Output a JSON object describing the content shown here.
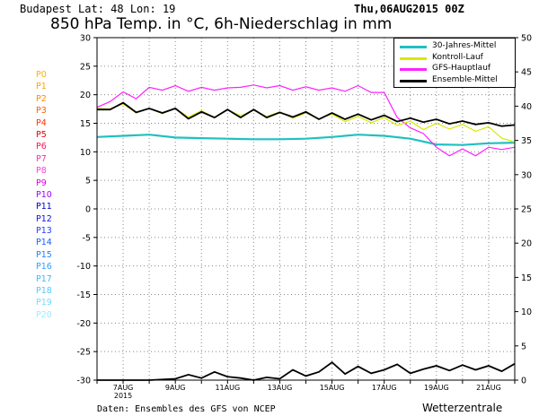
{
  "header": {
    "location": "Budapest   Lat: 48 Lon: 19",
    "run_time": "Thu,06AUG2015 00Z",
    "title": "850 hPa Temp. in °C, 6h-Niederschlag in mm"
  },
  "footer": {
    "source": "Daten: Ensembles des GFS von NCEP",
    "credit": "Wetterzentrale"
  },
  "ensemble_members": [
    {
      "label": "P0",
      "color": "#ffb000"
    },
    {
      "label": "P1",
      "color": "#ffa500"
    },
    {
      "label": "P2",
      "color": "#ff8c00"
    },
    {
      "label": "P3",
      "color": "#ff6000"
    },
    {
      "label": "P4",
      "color": "#ff3000"
    },
    {
      "label": "P5",
      "color": "#e80000"
    },
    {
      "label": "P6",
      "color": "#ff1060"
    },
    {
      "label": "P7",
      "color": "#ff30a0"
    },
    {
      "label": "P8",
      "color": "#ff40e0"
    },
    {
      "label": "P9",
      "color": "#e000e0"
    },
    {
      "label": "P10",
      "color": "#a000ff"
    },
    {
      "label": "P11",
      "color": "#0000c0"
    },
    {
      "label": "P12",
      "color": "#1010e0"
    },
    {
      "label": "P13",
      "color": "#2040ff"
    },
    {
      "label": "P14",
      "color": "#1060ff"
    },
    {
      "label": "P15",
      "color": "#2080ff"
    },
    {
      "label": "P16",
      "color": "#30a0ff"
    },
    {
      "label": "P17",
      "color": "#40b8ff"
    },
    {
      "label": "P18",
      "color": "#50c8ff"
    },
    {
      "label": "P19",
      "color": "#70dcff"
    },
    {
      "label": "P20",
      "color": "#a0ecff"
    }
  ],
  "legend": [
    {
      "label": "30-Jahres-Mittel",
      "color": "#20c0c0"
    },
    {
      "label": "Kontroll-Lauf",
      "color": "#d8e800"
    },
    {
      "label": "GFS-Hauptlauf",
      "color": "#ff20ff"
    },
    {
      "label": "Ensemble-Mittel",
      "color": "#000000"
    }
  ],
  "chart_data": {
    "type": "line",
    "title": "850 hPa Temp. in °C, 6h-Niederschlag in mm",
    "grid": true,
    "legend_position": "top-right",
    "x_range_days": [
      0,
      16
    ],
    "x_ticks": [
      {
        "day": 1.0,
        "label": "7AUG"
      },
      {
        "day": 3.0,
        "label": "9AUG"
      },
      {
        "day": 5.0,
        "label": "11AUG"
      },
      {
        "day": 7.0,
        "label": "13AUG"
      },
      {
        "day": 9.0,
        "label": "15AUG"
      },
      {
        "day": 11.0,
        "label": "17AUG"
      },
      {
        "day": 13.0,
        "label": "19AUG"
      },
      {
        "day": 15.0,
        "label": "21AUG"
      }
    ],
    "x_year_label": "2015",
    "y_left": {
      "label": "°C",
      "min": -30,
      "max": 30,
      "ticks": [
        -30,
        -25,
        -20,
        -15,
        -10,
        -5,
        0,
        5,
        10,
        15,
        20,
        25,
        30
      ]
    },
    "y_right": {
      "label": "mm",
      "min": 0,
      "max": 50,
      "ticks": [
        0,
        5,
        10,
        15,
        20,
        25,
        30,
        35,
        40,
        45,
        50
      ]
    },
    "series": [
      {
        "name": "30-Jahres-Mittel",
        "axis": "left",
        "color": "#20c0c0",
        "x": [
          0,
          1,
          2,
          3,
          4,
          5,
          6,
          7,
          8,
          9,
          10,
          11,
          12,
          13,
          14,
          15,
          16
        ],
        "y": [
          12.6,
          12.8,
          13.0,
          12.5,
          12.4,
          12.3,
          12.2,
          12.2,
          12.3,
          12.6,
          13.0,
          12.8,
          12.3,
          11.3,
          11.2,
          11.5,
          11.6
        ]
      },
      {
        "name": "GFS-Hauptlauf",
        "axis": "left",
        "color": "#ff20ff",
        "x": [
          0,
          0.5,
          1,
          1.5,
          2,
          2.5,
          3,
          3.5,
          4,
          4.5,
          5,
          5.5,
          6,
          6.5,
          7,
          7.5,
          8,
          8.5,
          9,
          9.5,
          10,
          10.5,
          11,
          11.5,
          12,
          12.5,
          13,
          13.5,
          14,
          14.5,
          15,
          15.5,
          16
        ],
        "y": [
          17.8,
          18.8,
          20.5,
          19.3,
          21.3,
          20.8,
          21.6,
          20.6,
          21.3,
          20.8,
          21.2,
          21.3,
          21.7,
          21.2,
          21.6,
          20.8,
          21.4,
          20.8,
          21.2,
          20.6,
          21.6,
          20.4,
          20.4,
          16.0,
          14.2,
          13.2,
          10.8,
          9.3,
          10.5,
          9.3,
          10.8,
          10.4,
          10.8
        ]
      },
      {
        "name": "Kontroll-Lauf",
        "axis": "left",
        "color": "#d8e800",
        "x": [
          0,
          0.5,
          1,
          1.5,
          2,
          2.5,
          3,
          3.5,
          4,
          4.5,
          5,
          5.5,
          6,
          6.5,
          7,
          7.5,
          8,
          8.5,
          9,
          9.5,
          10,
          10.5,
          11,
          11.5,
          12,
          12.5,
          13,
          13.5,
          14,
          14.5,
          15,
          15.5,
          16
        ],
        "y": [
          17.6,
          17.5,
          18.4,
          16.8,
          17.6,
          16.7,
          17.6,
          16.1,
          17.2,
          16.0,
          17.4,
          16.3,
          17.3,
          16.2,
          17.0,
          15.9,
          16.8,
          15.8,
          16.6,
          15.3,
          16.2,
          15.1,
          16.0,
          14.6,
          15.4,
          13.9,
          15.0,
          14.0,
          14.8,
          13.6,
          14.4,
          12.4,
          11.7
        ]
      },
      {
        "name": "Ensemble-Mittel",
        "axis": "left",
        "color": "#000000",
        "x": [
          0,
          0.5,
          1,
          1.5,
          2,
          2.5,
          3,
          3.5,
          4,
          4.5,
          5,
          5.5,
          6,
          6.5,
          7,
          7.5,
          8,
          8.5,
          9,
          9.5,
          10,
          10.5,
          11,
          11.5,
          12,
          12.5,
          13,
          13.5,
          14,
          14.5,
          15,
          15.5,
          16
        ],
        "y": [
          17.4,
          17.4,
          18.6,
          16.9,
          17.6,
          16.8,
          17.6,
          15.8,
          17.0,
          16.0,
          17.4,
          16.0,
          17.4,
          16.0,
          16.9,
          16.1,
          17.0,
          15.7,
          16.8,
          15.7,
          16.6,
          15.6,
          16.4,
          15.3,
          15.9,
          15.2,
          15.7,
          14.9,
          15.4,
          14.8,
          15.1,
          14.5,
          14.7
        ]
      },
      {
        "name": "Ensemble-Mittel Niederschlag",
        "axis": "right",
        "color": "#000000",
        "x": [
          0,
          1,
          2,
          3,
          3.5,
          4,
          4.5,
          5,
          5.5,
          6,
          6.5,
          7,
          7.5,
          8,
          8.5,
          9,
          9.5,
          10,
          10.5,
          11,
          11.5,
          12,
          12.5,
          13,
          13.5,
          14,
          14.5,
          15,
          15.5,
          16
        ],
        "y": [
          0,
          0,
          0,
          0.2,
          0.8,
          0.3,
          1.2,
          0.5,
          0.3,
          0,
          0.4,
          0.2,
          1.5,
          0.6,
          1.2,
          2.6,
          0.9,
          2.0,
          1.0,
          1.5,
          2.3,
          1.0,
          1.6,
          2.1,
          1.4,
          2.2,
          1.5,
          2.1,
          1.3,
          2.4
        ]
      }
    ]
  }
}
